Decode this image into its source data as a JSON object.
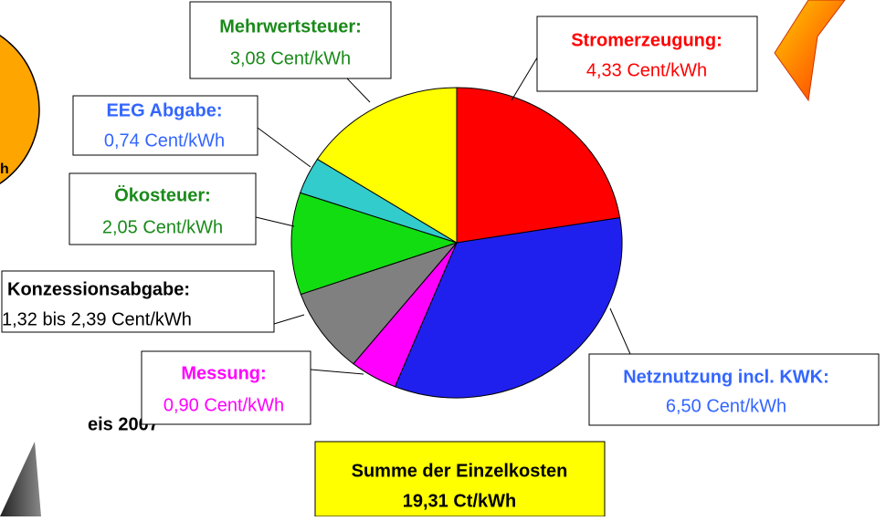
{
  "chart_data": {
    "type": "pie",
    "categories": [
      "Stromerzeugung:",
      "Netznutzung incl. KWK:",
      "Messung:",
      "Konzessionsabgabe:",
      "Ökosteuer:",
      "EEG Abgabe:",
      "Mehrwertsteuer:"
    ],
    "values": [
      4.33,
      6.5,
      0.9,
      1.71,
      2.05,
      0.74,
      3.08
    ],
    "value_labels": [
      "4,33 Cent/kWh",
      "6,50 Cent/kWh",
      "0,90 Cent/kWh",
      "1,32 bis 2,39 Cent/kWh",
      "2,05 Cent/kWh",
      "0,74 Cent/kWh",
      "3,08 Cent/kWh"
    ],
    "colors": [
      "#ff0000",
      "#2020ee",
      "#ff00ff",
      "#808080",
      "#11dd11",
      "#33cccc",
      "#ffff00"
    ],
    "label_colors": [
      "#ff0000",
      "#3366ff",
      "#ff00ff",
      "#000000",
      "#1a8a1a",
      "#3366ff",
      "#1a8a1a"
    ],
    "total_label": "Summe der Einzelkosten",
    "total_value_label": "19,31 Ct/kWh",
    "annotations": [
      "h",
      "eis 2007"
    ]
  }
}
